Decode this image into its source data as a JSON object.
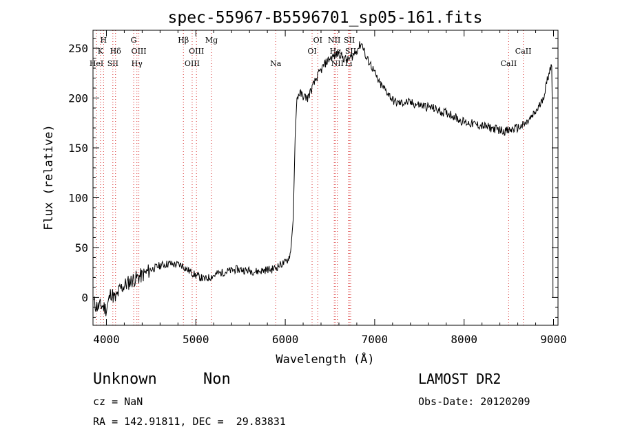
{
  "chart_data": {
    "type": "line",
    "title": "spec-55967-B5596701_sp05-161.fits",
    "xlabel": "Wavelength (Å)",
    "ylabel": "Flux (relative)",
    "xlim": [
      3850,
      9050
    ],
    "ylim": [
      -28,
      268
    ],
    "xticks": [
      4000,
      5000,
      6000,
      7000,
      8000,
      9000
    ],
    "yticks": [
      0,
      50,
      100,
      150,
      200,
      250
    ],
    "grid": false,
    "series": [
      {
        "x": [
          3860,
          3900,
          3950,
          4000,
          4050,
          4100,
          4150,
          4200,
          4250,
          4300,
          4350,
          4400,
          4450,
          4500,
          4550,
          4600,
          4650,
          4700,
          4750,
          4800,
          4850,
          4900,
          4950,
          5000,
          5050,
          5100,
          5150,
          5200,
          5250,
          5300,
          5350,
          5400,
          5450,
          5500,
          5550,
          5600,
          5650,
          5700,
          5750,
          5800,
          5850,
          5900,
          5950,
          6000,
          6030,
          6060,
          6090,
          6110,
          6130,
          6160,
          6200,
          6250,
          6300,
          6350,
          6400,
          6450,
          6500,
          6550,
          6600,
          6650,
          6700,
          6750,
          6800,
          6850,
          6880,
          6900,
          6950,
          7000,
          7050,
          7100,
          7150,
          7200,
          7250,
          7300,
          7350,
          7400,
          7450,
          7500,
          7550,
          7600,
          7650,
          7700,
          7750,
          7800,
          7850,
          7900,
          7950,
          8000,
          8050,
          8100,
          8150,
          8200,
          8250,
          8300,
          8350,
          8400,
          8450,
          8500,
          8550,
          8600,
          8650,
          8700,
          8750,
          8800,
          8850,
          8900,
          8930,
          8960,
          8980
        ],
        "values": [
          -5,
          -10,
          -8,
          -12,
          5,
          -2,
          8,
          12,
          15,
          18,
          20,
          22,
          25,
          28,
          30,
          32,
          33,
          34,
          33,
          33,
          32,
          28,
          25,
          22,
          20,
          18,
          20,
          22,
          24,
          25,
          26,
          27,
          28,
          28,
          27,
          27,
          26,
          26,
          27,
          28,
          28,
          30,
          33,
          35,
          38,
          45,
          80,
          160,
          200,
          205,
          202,
          200,
          210,
          220,
          228,
          235,
          240,
          242,
          245,
          240,
          238,
          242,
          248,
          255,
          250,
          240,
          235,
          225,
          215,
          210,
          205,
          198,
          195,
          195,
          196,
          195,
          194,
          193,
          192,
          191,
          190,
          188,
          186,
          185,
          184,
          181,
          178,
          176,
          175,
          174,
          173,
          172,
          171,
          170,
          169,
          168,
          167,
          167,
          169,
          170,
          172,
          175,
          180,
          186,
          193,
          205,
          218,
          230,
          232
        ]
      }
    ],
    "lines": [
      {
        "label": "H",
        "x": 3968,
        "row": 1
      },
      {
        "label": "K",
        "x": 3934,
        "row": 2
      },
      {
        "label": "HeI",
        "x": 3889,
        "row": 3
      },
      {
        "label": "Hδ",
        "x": 4102,
        "row": 2
      },
      {
        "label": "SII",
        "x": 4072,
        "row": 3
      },
      {
        "label": "G",
        "x": 4305,
        "row": 1
      },
      {
        "label": "OIII",
        "x": 4363,
        "row": 2
      },
      {
        "label": "Hγ",
        "x": 4341,
        "row": 3
      },
      {
        "label": "Hβ",
        "x": 4861,
        "row": 1
      },
      {
        "label": "OIII",
        "x": 5007,
        "row": 2
      },
      {
        "label": "OIII",
        "x": 4959,
        "row": 3
      },
      {
        "label": "Mg",
        "x": 5175,
        "row": 1
      },
      {
        "label": "Na",
        "x": 5893,
        "row": 3
      },
      {
        "label": "OI",
        "x": 6364,
        "row": 1
      },
      {
        "label": "OI",
        "x": 6300,
        "row": 2
      },
      {
        "label": "NII",
        "x": 6548,
        "row": 1
      },
      {
        "label": "SII",
        "x": 6717,
        "row": 1
      },
      {
        "label": "Hα",
        "x": 6563,
        "row": 2
      },
      {
        "label": "SII",
        "x": 6731,
        "row": 2
      },
      {
        "label": "NII",
        "x": 6583,
        "row": 3
      },
      {
        "label": "Li",
        "x": 6708,
        "row": 3
      },
      {
        "label": "CaII",
        "x": 8662,
        "row": 2
      },
      {
        "label": "CaII",
        "x": 8498,
        "row": 3
      }
    ]
  },
  "info": {
    "class": "Unknown",
    "subclass": "Non",
    "survey": "LAMOST DR2",
    "cz": "cz = NaN",
    "obs_date": "Obs-Date: 20120209",
    "radec": "RA = 142.91811, DEC =  29.83831"
  }
}
